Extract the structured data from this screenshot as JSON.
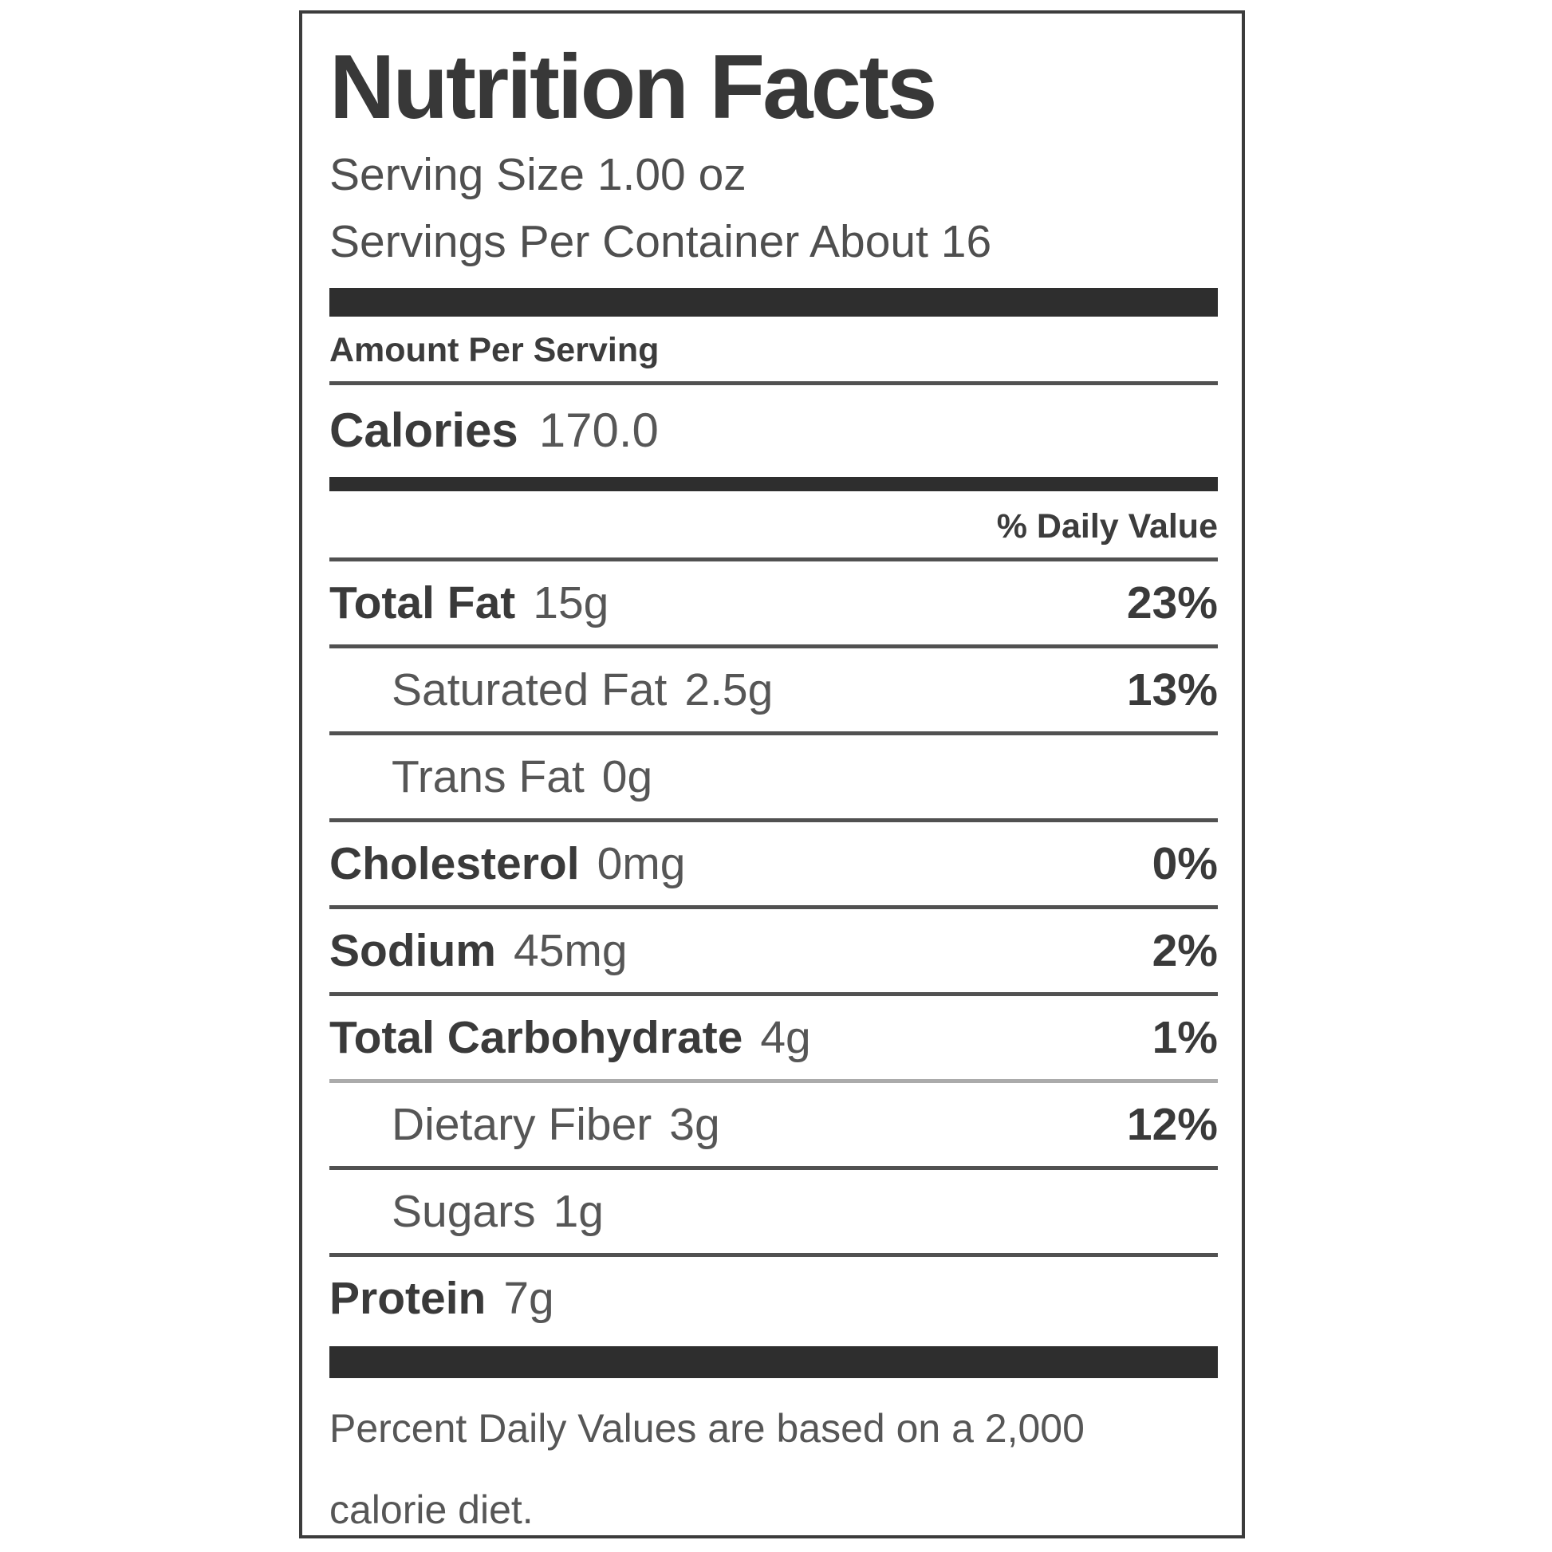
{
  "label": {
    "title": "Nutrition Facts",
    "serving": {
      "size_line": "Serving Size 1.00 oz",
      "per_container_line": "Servings Per Container About 16"
    },
    "amount_per_serving": "Amount Per Serving",
    "calories": {
      "name": "Calories",
      "value": "170.0"
    },
    "daily_value_header": "% Daily Value",
    "nutrients": [
      {
        "name": "Total Fat",
        "amount": "15g",
        "dv": "23%"
      },
      {
        "name": "Saturated Fat",
        "amount": "2.5g",
        "dv": "13%"
      },
      {
        "name": "Trans Fat",
        "amount": "0g",
        "dv": ""
      },
      {
        "name": "Cholesterol",
        "amount": "0mg",
        "dv": "0%"
      },
      {
        "name": "Sodium",
        "amount": "45mg",
        "dv": "2%"
      },
      {
        "name": "Total Carbohydrate",
        "amount": "4g",
        "dv": "1%"
      },
      {
        "name": "Dietary Fiber",
        "amount": "3g",
        "dv": "12%"
      },
      {
        "name": "Sugars",
        "amount": "1g",
        "dv": ""
      },
      {
        "name": "Protein",
        "amount": "7g",
        "dv": ""
      }
    ],
    "footnote": {
      "line1": "Percent Daily Values are based on a 2,000",
      "line2": "calorie diet."
    },
    "colors": {
      "text_dark": "#3a3a3a",
      "text_gray": "#565656",
      "section_bar": "#2e2e2e",
      "separator": "#515151",
      "separator_light": "#ababab",
      "border": "#3c3c3c",
      "background": "#ffffff"
    }
  }
}
